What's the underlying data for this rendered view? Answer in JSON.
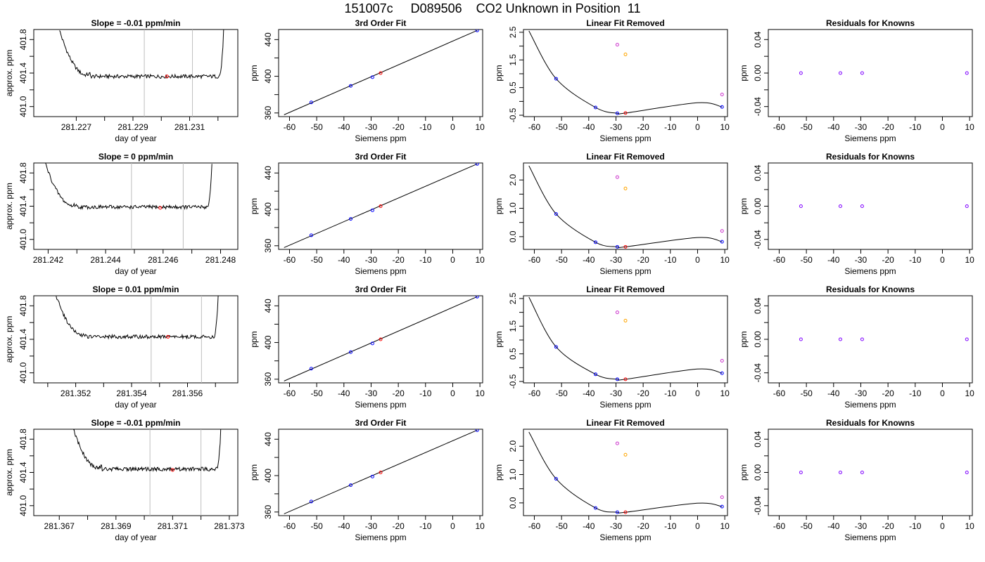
{
  "title": "151007c     D089506    CO2 Unknown in Position  11",
  "colors": {
    "known": "#0000ff",
    "unknown": "#ff0000",
    "ref_magenta": "#cc33cc",
    "ref_orange": "#ffa500",
    "guide": "#bebebe",
    "line": "#000000"
  },
  "chart_data": [
    {
      "row": 0,
      "panel": "trace",
      "type": "line",
      "title": "Slope =  -0.01  ppm/min",
      "xlabel": "day of year",
      "ylabel": "approx. ppm",
      "xlim": [
        281.2255,
        281.2327
      ],
      "ylim": [
        400.88,
        401.92
      ],
      "xticks": [
        281.227,
        281.229,
        281.231
      ],
      "xtick_labels": [
        "281.227",
        "281.229",
        "281.231"
      ],
      "xminor": [
        281.228,
        281.23,
        281.232
      ],
      "yticks": [
        401.0,
        401.4,
        401.8
      ],
      "ytick_labels": [
        "401.0",
        "401.4",
        "401.8"
      ],
      "yminor": [
        401.2,
        401.6
      ],
      "vlines": [
        281.2294,
        281.2311
      ],
      "trace": {
        "x0": 281.2264,
        "x1": 281.2322,
        "flat_start": 281.2275,
        "flat_end": 281.232,
        "base": 401.36,
        "left_end": 401.92,
        "right_end": 401.92
      },
      "marker": {
        "x": 281.2302,
        "y": 401.36
      }
    },
    {
      "row": 0,
      "panel": "fit",
      "type": "scatter",
      "title": "3rd Order Fit",
      "xlabel": "Siemens ppm",
      "ylabel": "ppm",
      "xlim": [
        -64,
        11
      ],
      "ylim": [
        356,
        451
      ],
      "xticks": [
        -60,
        -50,
        -40,
        -30,
        -20,
        -10,
        0,
        10
      ],
      "xtick_labels": [
        "-60",
        "-50",
        "-40",
        "-30",
        "-20",
        "-10",
        "0",
        "10"
      ],
      "yticks": [
        360,
        400,
        440
      ],
      "ytick_labels": [
        "360",
        "400",
        "440"
      ],
      "yminor": [
        380,
        420
      ],
      "line": [
        [
          -62,
          358
        ],
        [
          9,
          450
        ]
      ],
      "known_points": [
        [
          -52,
          371.5
        ],
        [
          -37.5,
          389.5
        ],
        [
          -29.5,
          399
        ],
        [
          9,
          450
        ]
      ],
      "unknown_point": [
        -26.5,
        403.5
      ]
    },
    {
      "row": 0,
      "panel": "resid",
      "type": "scatter",
      "title": "Linear Fit Removed",
      "xlabel": "Siemens ppm",
      "ylabel": "ppm",
      "xlim": [
        -64,
        11
      ],
      "ylim": [
        -0.55,
        2.6
      ],
      "xticks": [
        -60,
        -50,
        -40,
        -30,
        -20,
        -10,
        0,
        10
      ],
      "xtick_labels": [
        "-60",
        "-50",
        "-40",
        "-30",
        "-20",
        "-10",
        "0",
        "10"
      ],
      "yticks": [
        -0.5,
        0.5,
        1.5,
        2.5
      ],
      "ytick_labels": [
        "-0.5",
        "0.5",
        "1.5",
        "2.5"
      ],
      "yminor": [
        0,
        1,
        2
      ],
      "curve_anchors": [
        [
          -62,
          2.55
        ],
        [
          -52,
          0.82
        ],
        [
          -37.5,
          -0.22
        ],
        [
          -29.5,
          -0.43
        ],
        [
          -26.5,
          -0.42
        ],
        [
          0,
          -0.05
        ],
        [
          9,
          -0.2
        ]
      ],
      "known_points": [
        [
          -52,
          0.82
        ],
        [
          -37.5,
          -0.22
        ],
        [
          -29.5,
          -0.43
        ],
        [
          9,
          -0.2
        ]
      ],
      "unknown_point": [
        -26.5,
        -0.42
      ],
      "ref_magenta": [
        [
          -29.5,
          2.05
        ],
        [
          9,
          0.25
        ]
      ],
      "ref_orange": [
        [
          -26.5,
          1.7
        ]
      ]
    },
    {
      "row": 0,
      "panel": "knowns",
      "type": "scatter",
      "title": "Residuals for Knowns",
      "xlabel": "Siemens ppm",
      "ylabel": "ppm",
      "xlim": [
        -64,
        11
      ],
      "ylim": [
        -0.052,
        0.052
      ],
      "xticks": [
        -60,
        -50,
        -40,
        -30,
        -20,
        -10,
        0,
        10
      ],
      "xtick_labels": [
        "-60",
        "-50",
        "-40",
        "-30",
        "-20",
        "-10",
        "0",
        "10"
      ],
      "yticks": [
        -0.04,
        0.0,
        0.04
      ],
      "ytick_labels": [
        "-0.04",
        "0.00",
        "0.04"
      ],
      "yminor": [
        -0.02,
        0.02
      ],
      "points": [
        [
          -52,
          0
        ],
        [
          -37.5,
          0
        ],
        [
          -29.5,
          0
        ],
        [
          9,
          0
        ]
      ]
    },
    {
      "row": 1,
      "panel": "trace",
      "type": "line",
      "title": "Slope =  0  ppm/min",
      "xlabel": "day of year",
      "ylabel": "approx. ppm",
      "xlim": [
        281.2415,
        281.2486
      ],
      "ylim": [
        400.88,
        401.92
      ],
      "xticks": [
        281.242,
        281.244,
        281.246,
        281.248
      ],
      "xtick_labels": [
        "281.242",
        "281.244",
        "281.246",
        "281.248"
      ],
      "xminor": [
        281.243,
        281.245,
        281.247
      ],
      "yticks": [
        401.0,
        401.4,
        401.8
      ],
      "ytick_labels": [
        "401.0",
        "401.4",
        "401.8"
      ],
      "yminor": [
        401.2,
        401.6
      ],
      "vlines": [
        281.2449,
        281.2467
      ],
      "trace": {
        "x0": 281.2419,
        "x1": 281.2477,
        "flat_start": 281.243,
        "flat_end": 281.2475,
        "base": 401.39,
        "left_end": 401.92,
        "right_end": 401.92
      },
      "marker": {
        "x": 281.2459,
        "y": 401.38
      }
    },
    {
      "row": 1,
      "panel": "fit",
      "type": "scatter",
      "title": "3rd Order Fit",
      "xlabel": "Siemens ppm",
      "ylabel": "ppm",
      "xlim": [
        -64,
        11
      ],
      "ylim": [
        356,
        451
      ],
      "xticks": [
        -60,
        -50,
        -40,
        -30,
        -20,
        -10,
        0,
        10
      ],
      "xtick_labels": [
        "-60",
        "-50",
        "-40",
        "-30",
        "-20",
        "-10",
        "0",
        "10"
      ],
      "yticks": [
        360,
        400,
        440
      ],
      "ytick_labels": [
        "360",
        "400",
        "440"
      ],
      "yminor": [
        380,
        420
      ],
      "line": [
        [
          -62,
          358
        ],
        [
          9,
          450
        ]
      ],
      "known_points": [
        [
          -52,
          371.5
        ],
        [
          -37.5,
          389.5
        ],
        [
          -29.5,
          399
        ],
        [
          9,
          450
        ]
      ],
      "unknown_point": [
        -26.5,
        403.5
      ]
    },
    {
      "row": 1,
      "panel": "resid",
      "type": "scatter",
      "title": "Linear Fit Removed",
      "xlabel": "Siemens ppm",
      "ylabel": "ppm",
      "xlim": [
        -64,
        11
      ],
      "ylim": [
        -0.45,
        2.6
      ],
      "xticks": [
        -60,
        -50,
        -40,
        -30,
        -20,
        -10,
        0,
        10
      ],
      "xtick_labels": [
        "-60",
        "-50",
        "-40",
        "-30",
        "-20",
        "-10",
        "0",
        "10"
      ],
      "yticks": [
        0.0,
        1.0,
        2.0
      ],
      "ytick_labels": [
        "0.0",
        "1.0",
        "2.0"
      ],
      "yminor": [
        0.5,
        1.5
      ],
      "curve_anchors": [
        [
          -62,
          2.5
        ],
        [
          -52,
          0.8
        ],
        [
          -37.5,
          -0.2
        ],
        [
          -29.5,
          -0.36
        ],
        [
          -26.5,
          -0.36
        ],
        [
          0,
          -0.03
        ],
        [
          9,
          -0.18
        ]
      ],
      "known_points": [
        [
          -52,
          0.8
        ],
        [
          -37.5,
          -0.2
        ],
        [
          -29.5,
          -0.36
        ],
        [
          9,
          -0.18
        ]
      ],
      "unknown_point": [
        -26.5,
        -0.36
      ],
      "ref_magenta": [
        [
          -29.5,
          2.1
        ],
        [
          9,
          0.2
        ]
      ],
      "ref_orange": [
        [
          -26.5,
          1.7
        ]
      ]
    },
    {
      "row": 1,
      "panel": "knowns",
      "type": "scatter",
      "title": "Residuals for Knowns",
      "xlabel": "Siemens ppm",
      "ylabel": "ppm",
      "xlim": [
        -64,
        11
      ],
      "ylim": [
        -0.052,
        0.052
      ],
      "xticks": [
        -60,
        -50,
        -40,
        -30,
        -20,
        -10,
        0,
        10
      ],
      "xtick_labels": [
        "-60",
        "-50",
        "-40",
        "-30",
        "-20",
        "-10",
        "0",
        "10"
      ],
      "yticks": [
        -0.04,
        0.0,
        0.04
      ],
      "ytick_labels": [
        "-0.04",
        "0.00",
        "0.04"
      ],
      "yminor": [
        -0.02,
        0.02
      ],
      "points": [
        [
          -52,
          0
        ],
        [
          -37.5,
          0
        ],
        [
          -29.5,
          0
        ],
        [
          9,
          0
        ]
      ]
    },
    {
      "row": 2,
      "panel": "trace",
      "type": "line",
      "title": "Slope =  0.01  ppm/min",
      "xlabel": "day of year",
      "ylabel": "approx. ppm",
      "xlim": [
        281.3505,
        281.3578
      ],
      "ylim": [
        400.88,
        401.92
      ],
      "xticks": [
        281.352,
        281.354,
        281.356
      ],
      "xtick_labels": [
        "281.352",
        "281.354",
        "281.356"
      ],
      "xminor": [
        281.351,
        281.353,
        281.355,
        281.357
      ],
      "yticks": [
        401.0,
        401.4,
        401.8
      ],
      "ytick_labels": [
        "401.0",
        "401.4",
        "401.8"
      ],
      "yminor": [
        401.2,
        401.6
      ],
      "vlines": [
        281.3547,
        281.3565
      ],
      "trace": {
        "x0": 281.3513,
        "x1": 281.3571,
        "flat_start": 281.3524,
        "flat_end": 281.3569,
        "base": 401.43,
        "left_end": 401.92,
        "right_end": 401.92
      },
      "marker": {
        "x": 281.3553,
        "y": 401.43
      }
    },
    {
      "row": 2,
      "panel": "fit",
      "type": "scatter",
      "title": "3rd Order Fit",
      "xlabel": "Siemens ppm",
      "ylabel": "ppm",
      "xlim": [
        -64,
        11
      ],
      "ylim": [
        356,
        451
      ],
      "xticks": [
        -60,
        -50,
        -40,
        -30,
        -20,
        -10,
        0,
        10
      ],
      "xtick_labels": [
        "-60",
        "-50",
        "-40",
        "-30",
        "-20",
        "-10",
        "0",
        "10"
      ],
      "yticks": [
        360,
        400,
        440
      ],
      "ytick_labels": [
        "360",
        "400",
        "440"
      ],
      "yminor": [
        380,
        420
      ],
      "line": [
        [
          -62,
          358
        ],
        [
          9,
          450
        ]
      ],
      "known_points": [
        [
          -52,
          371.5
        ],
        [
          -37.5,
          389.5
        ],
        [
          -29.5,
          399
        ],
        [
          9,
          450
        ]
      ],
      "unknown_point": [
        -26.5,
        403.5
      ]
    },
    {
      "row": 2,
      "panel": "resid",
      "type": "scatter",
      "title": "Linear Fit Removed",
      "xlabel": "Siemens ppm",
      "ylabel": "ppm",
      "xlim": [
        -64,
        11
      ],
      "ylim": [
        -0.55,
        2.6
      ],
      "xticks": [
        -60,
        -50,
        -40,
        -30,
        -20,
        -10,
        0,
        10
      ],
      "xtick_labels": [
        "-60",
        "-50",
        "-40",
        "-30",
        "-20",
        "-10",
        "0",
        "10"
      ],
      "yticks": [
        -0.5,
        0.5,
        1.5,
        2.5
      ],
      "ytick_labels": [
        "-0.5",
        "0.5",
        "1.5",
        "2.5"
      ],
      "yminor": [
        0,
        1,
        2
      ],
      "curve_anchors": [
        [
          -62,
          2.55
        ],
        [
          -52,
          0.75
        ],
        [
          -37.5,
          -0.24
        ],
        [
          -29.5,
          -0.42
        ],
        [
          -26.5,
          -0.42
        ],
        [
          0,
          -0.05
        ],
        [
          9,
          -0.2
        ]
      ],
      "known_points": [
        [
          -52,
          0.75
        ],
        [
          -37.5,
          -0.24
        ],
        [
          -29.5,
          -0.42
        ],
        [
          9,
          -0.2
        ]
      ],
      "unknown_point": [
        -26.5,
        -0.42
      ],
      "ref_magenta": [
        [
          -29.5,
          2.0
        ],
        [
          9,
          0.25
        ]
      ],
      "ref_orange": [
        [
          -26.5,
          1.7
        ]
      ]
    },
    {
      "row": 2,
      "panel": "knowns",
      "type": "scatter",
      "title": "Residuals for Knowns",
      "xlabel": "Siemens ppm",
      "ylabel": "ppm",
      "xlim": [
        -64,
        11
      ],
      "ylim": [
        -0.052,
        0.052
      ],
      "xticks": [
        -60,
        -50,
        -40,
        -30,
        -20,
        -10,
        0,
        10
      ],
      "xtick_labels": [
        "-60",
        "-50",
        "-40",
        "-30",
        "-20",
        "-10",
        "0",
        "10"
      ],
      "yticks": [
        -0.04,
        0.0,
        0.04
      ],
      "ytick_labels": [
        "-0.04",
        "0.00",
        "0.04"
      ],
      "yminor": [
        -0.02,
        0.02
      ],
      "points": [
        [
          -52,
          0
        ],
        [
          -37.5,
          0
        ],
        [
          -29.5,
          0
        ],
        [
          9,
          0
        ]
      ]
    },
    {
      "row": 3,
      "panel": "trace",
      "type": "line",
      "title": "Slope =  -0.01  ppm/min",
      "xlabel": "day of year",
      "ylabel": "approx. ppm",
      "xlim": [
        281.3661,
        281.3733
      ],
      "ylim": [
        400.88,
        401.92
      ],
      "xticks": [
        281.367,
        281.369,
        281.371,
        281.373
      ],
      "xtick_labels": [
        "281.367",
        "281.369",
        "281.371",
        "281.373"
      ],
      "xminor": [
        281.368,
        281.37,
        281.372
      ],
      "yticks": [
        401.0,
        401.4,
        401.8
      ],
      "ytick_labels": [
        "401.0",
        "401.4",
        "401.8"
      ],
      "yminor": [
        401.2,
        401.6
      ],
      "vlines": [
        281.3702,
        281.372
      ],
      "trace": {
        "x0": 281.3675,
        "x1": 281.3727,
        "flat_start": 281.3685,
        "flat_end": 281.3725,
        "base": 401.44,
        "left_end": 401.92,
        "right_end": 401.92
      },
      "marker": {
        "x": 281.371,
        "y": 401.43
      }
    },
    {
      "row": 3,
      "panel": "fit",
      "type": "scatter",
      "title": "3rd Order Fit",
      "xlabel": "Siemens ppm",
      "ylabel": "ppm",
      "xlim": [
        -64,
        11
      ],
      "ylim": [
        356,
        451
      ],
      "xticks": [
        -60,
        -50,
        -40,
        -30,
        -20,
        -10,
        0,
        10
      ],
      "xtick_labels": [
        "-60",
        "-50",
        "-40",
        "-30",
        "-20",
        "-10",
        "0",
        "10"
      ],
      "yticks": [
        360,
        400,
        440
      ],
      "ytick_labels": [
        "360",
        "400",
        "440"
      ],
      "yminor": [
        380,
        420
      ],
      "line": [
        [
          -62,
          358
        ],
        [
          9,
          450
        ]
      ],
      "known_points": [
        [
          -52,
          371.5
        ],
        [
          -37.5,
          389.5
        ],
        [
          -29.5,
          399
        ],
        [
          9,
          450
        ]
      ],
      "unknown_point": [
        -26.5,
        403.5
      ]
    },
    {
      "row": 3,
      "panel": "resid",
      "type": "scatter",
      "title": "Linear Fit Removed",
      "xlabel": "Siemens ppm",
      "ylabel": "ppm",
      "xlim": [
        -64,
        11
      ],
      "ylim": [
        -0.45,
        2.6
      ],
      "xticks": [
        -60,
        -50,
        -40,
        -30,
        -20,
        -10,
        0,
        10
      ],
      "xtick_labels": [
        "-60",
        "-50",
        "-40",
        "-30",
        "-20",
        "-10",
        "0",
        "10"
      ],
      "yticks": [
        0.0,
        1.0,
        2.0
      ],
      "ytick_labels": [
        "0.0",
        "1.0",
        "2.0"
      ],
      "yminor": [
        0.5,
        1.5
      ],
      "curve_anchors": [
        [
          -62,
          2.5
        ],
        [
          -52,
          0.85
        ],
        [
          -37.5,
          -0.18
        ],
        [
          -29.5,
          -0.33
        ],
        [
          -26.5,
          -0.33
        ],
        [
          0,
          -0.01
        ],
        [
          9,
          -0.13
        ]
      ],
      "known_points": [
        [
          -52,
          0.85
        ],
        [
          -37.5,
          -0.18
        ],
        [
          -29.5,
          -0.33
        ],
        [
          9,
          -0.13
        ]
      ],
      "unknown_point": [
        -26.5,
        -0.33
      ],
      "ref_magenta": [
        [
          -29.5,
          2.1
        ],
        [
          9,
          0.2
        ]
      ],
      "ref_orange": [
        [
          -26.5,
          1.7
        ]
      ]
    },
    {
      "row": 3,
      "panel": "knowns",
      "type": "scatter",
      "title": "Residuals for Knowns",
      "xlabel": "Siemens ppm",
      "ylabel": "ppm",
      "xlim": [
        -64,
        11
      ],
      "ylim": [
        -0.052,
        0.052
      ],
      "xticks": [
        -60,
        -50,
        -40,
        -30,
        -20,
        -10,
        0,
        10
      ],
      "xtick_labels": [
        "-60",
        "-50",
        "-40",
        "-30",
        "-20",
        "-10",
        "0",
        "10"
      ],
      "yticks": [
        -0.04,
        0.0,
        0.04
      ],
      "ytick_labels": [
        "-0.04",
        "0.00",
        "0.04"
      ],
      "yminor": [
        -0.02,
        0.02
      ],
      "points": [
        [
          -52,
          0
        ],
        [
          -37.5,
          0
        ],
        [
          -29.5,
          0
        ],
        [
          9,
          0
        ]
      ]
    }
  ]
}
